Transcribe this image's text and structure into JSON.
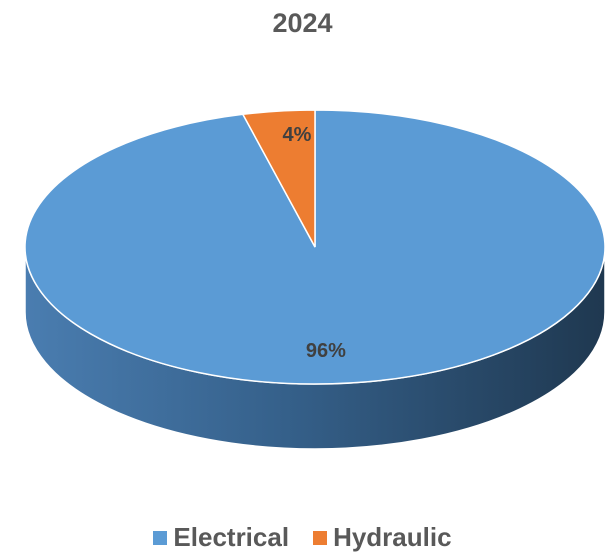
{
  "chart_data": {
    "type": "pie",
    "title": "2024",
    "slices": [
      {
        "label": "Electrical",
        "value": 96,
        "display": "96%",
        "color": "#5b9bd5",
        "side_dark": "#203a53",
        "side_light": "#4a7db0"
      },
      {
        "label": "Hydraulic",
        "value": 4,
        "display": "4%",
        "color": "#ed7d31",
        "side_dark": "#9a4a17",
        "side_light": "#c8651f"
      }
    ],
    "style": "3d",
    "legend_position": "bottom"
  }
}
